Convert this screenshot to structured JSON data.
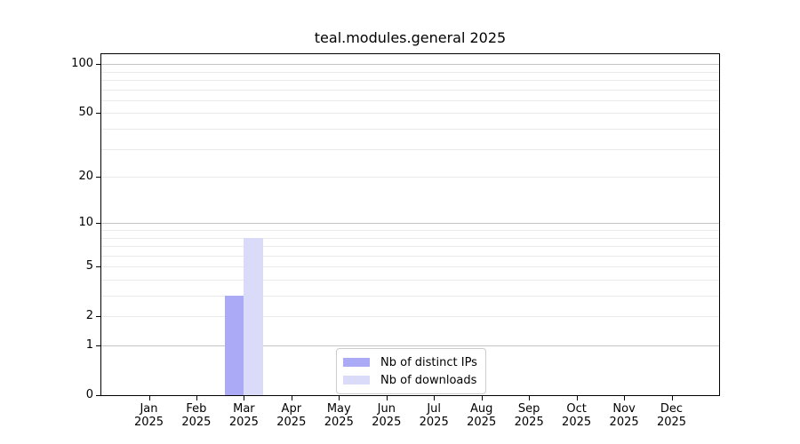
{
  "chart_data": {
    "type": "bar",
    "title": "teal.modules.general 2025",
    "x_categories": [
      "Jan",
      "Feb",
      "Mar",
      "Apr",
      "May",
      "Jun",
      "Jul",
      "Aug",
      "Sep",
      "Oct",
      "Nov",
      "Dec"
    ],
    "x_year": "2025",
    "series": [
      {
        "name": "Nb of distinct IPs",
        "color": "#aaaaf6",
        "values": [
          0,
          0,
          3,
          0,
          0,
          0,
          0,
          0,
          0,
          0,
          0,
          0
        ]
      },
      {
        "name": "Nb of downloads",
        "color": "#dadaf9",
        "values": [
          0,
          0,
          8,
          0,
          0,
          0,
          0,
          0,
          0,
          0,
          0,
          0
        ]
      }
    ],
    "y_scale": "log1p",
    "ylim": [
      0,
      115
    ],
    "y_tick_labels": [
      0,
      1,
      2,
      5,
      10,
      20,
      50,
      100
    ],
    "y_major_gridlines": [
      1,
      10,
      100
    ],
    "y_minor_gridlines": [
      2,
      3,
      4,
      5,
      6,
      7,
      8,
      9,
      20,
      30,
      40,
      50,
      60,
      70,
      80,
      90
    ],
    "grid": true,
    "legend_position": "bottom-center",
    "colors": {
      "axis": "#000000",
      "major_grid": "#c4c4c4",
      "minor_grid": "#e9e9e9",
      "background": "#ffffff"
    }
  }
}
